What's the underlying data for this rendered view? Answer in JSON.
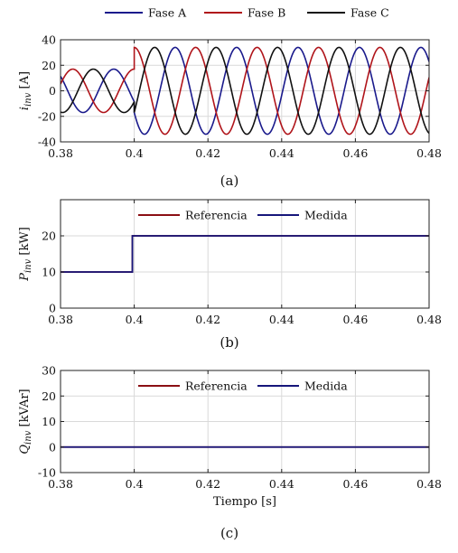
{
  "chart_data": [
    {
      "id": "a",
      "type": "line",
      "subtitle": "(a)",
      "ylabel_main": "i",
      "ylabel_sub": "inv",
      "ylabel_unit": " [A]",
      "xlabel": "",
      "xlim": [
        0.38,
        0.48
      ],
      "ylim": [
        -40,
        40
      ],
      "xticks": [
        0.38,
        0.4,
        0.42,
        0.44,
        0.46,
        0.48
      ],
      "xtick_labels": [
        "0.38",
        "0.4",
        "0.42",
        "0.44",
        "0.46",
        "0.48"
      ],
      "yticks": [
        -40,
        -20,
        0,
        20,
        40
      ],
      "ytick_labels": [
        "-40",
        "-20",
        "0",
        "20",
        "40"
      ],
      "grid": true,
      "legend_position": "above",
      "frequency_hz": 60,
      "step_time": 0.4,
      "amplitude_before": 17,
      "amplitude_after": 34,
      "series": [
        {
          "name": "Fase A",
          "color": "#1a1a8c",
          "phase_deg": -150
        },
        {
          "name": "Fase B",
          "color": "#b0141a",
          "phase_deg": 90
        },
        {
          "name": "Fase C",
          "color": "#111111",
          "phase_deg": -30
        }
      ]
    },
    {
      "id": "b",
      "type": "line",
      "subtitle": "(b)",
      "ylabel_main": "P",
      "ylabel_sub": "inv",
      "ylabel_unit": " [kW]",
      "xlabel": "",
      "xlim": [
        0.38,
        0.48
      ],
      "ylim": [
        0,
        30
      ],
      "xticks": [
        0.38,
        0.4,
        0.42,
        0.44,
        0.46,
        0.48
      ],
      "xtick_labels": [
        "0.38",
        "0.4",
        "0.42",
        "0.44",
        "0.46",
        "0.48"
      ],
      "yticks": [
        0,
        10,
        20
      ],
      "ytick_labels": [
        "0",
        "10",
        "20"
      ],
      "grid": true,
      "legend_position": "top-center",
      "series": [
        {
          "name": "Referencia",
          "color": "#8b0f14",
          "x": [
            0.38,
            0.3995,
            0.3995,
            0.48
          ],
          "y": [
            10,
            10,
            20,
            20
          ]
        },
        {
          "name": "Medida",
          "color": "#16167a",
          "x": [
            0.38,
            0.3995,
            0.3995,
            0.48
          ],
          "y": [
            10,
            10,
            20,
            20
          ]
        }
      ]
    },
    {
      "id": "c",
      "type": "line",
      "subtitle": "(c)",
      "ylabel_main": "Q",
      "ylabel_sub": "inv",
      "ylabel_unit": " [kVAr]",
      "xlabel": "Tiempo [s]",
      "xlim": [
        0.38,
        0.48
      ],
      "ylim": [
        -10,
        30
      ],
      "xticks": [
        0.38,
        0.4,
        0.42,
        0.44,
        0.46,
        0.48
      ],
      "xtick_labels": [
        "0.38",
        "0.4",
        "0.42",
        "0.44",
        "0.46",
        "0.48"
      ],
      "yticks": [
        -10,
        0,
        10,
        20,
        30
      ],
      "ytick_labels": [
        "-10",
        "0",
        "10",
        "20",
        "30"
      ],
      "grid": true,
      "legend_position": "top-center",
      "series": [
        {
          "name": "Referencia",
          "color": "#8b0f14",
          "x": [
            0.38,
            0.48
          ],
          "y": [
            0,
            0
          ]
        },
        {
          "name": "Medida",
          "color": "#16167a",
          "x": [
            0.38,
            0.48
          ],
          "y": [
            0,
            0
          ]
        }
      ]
    }
  ]
}
